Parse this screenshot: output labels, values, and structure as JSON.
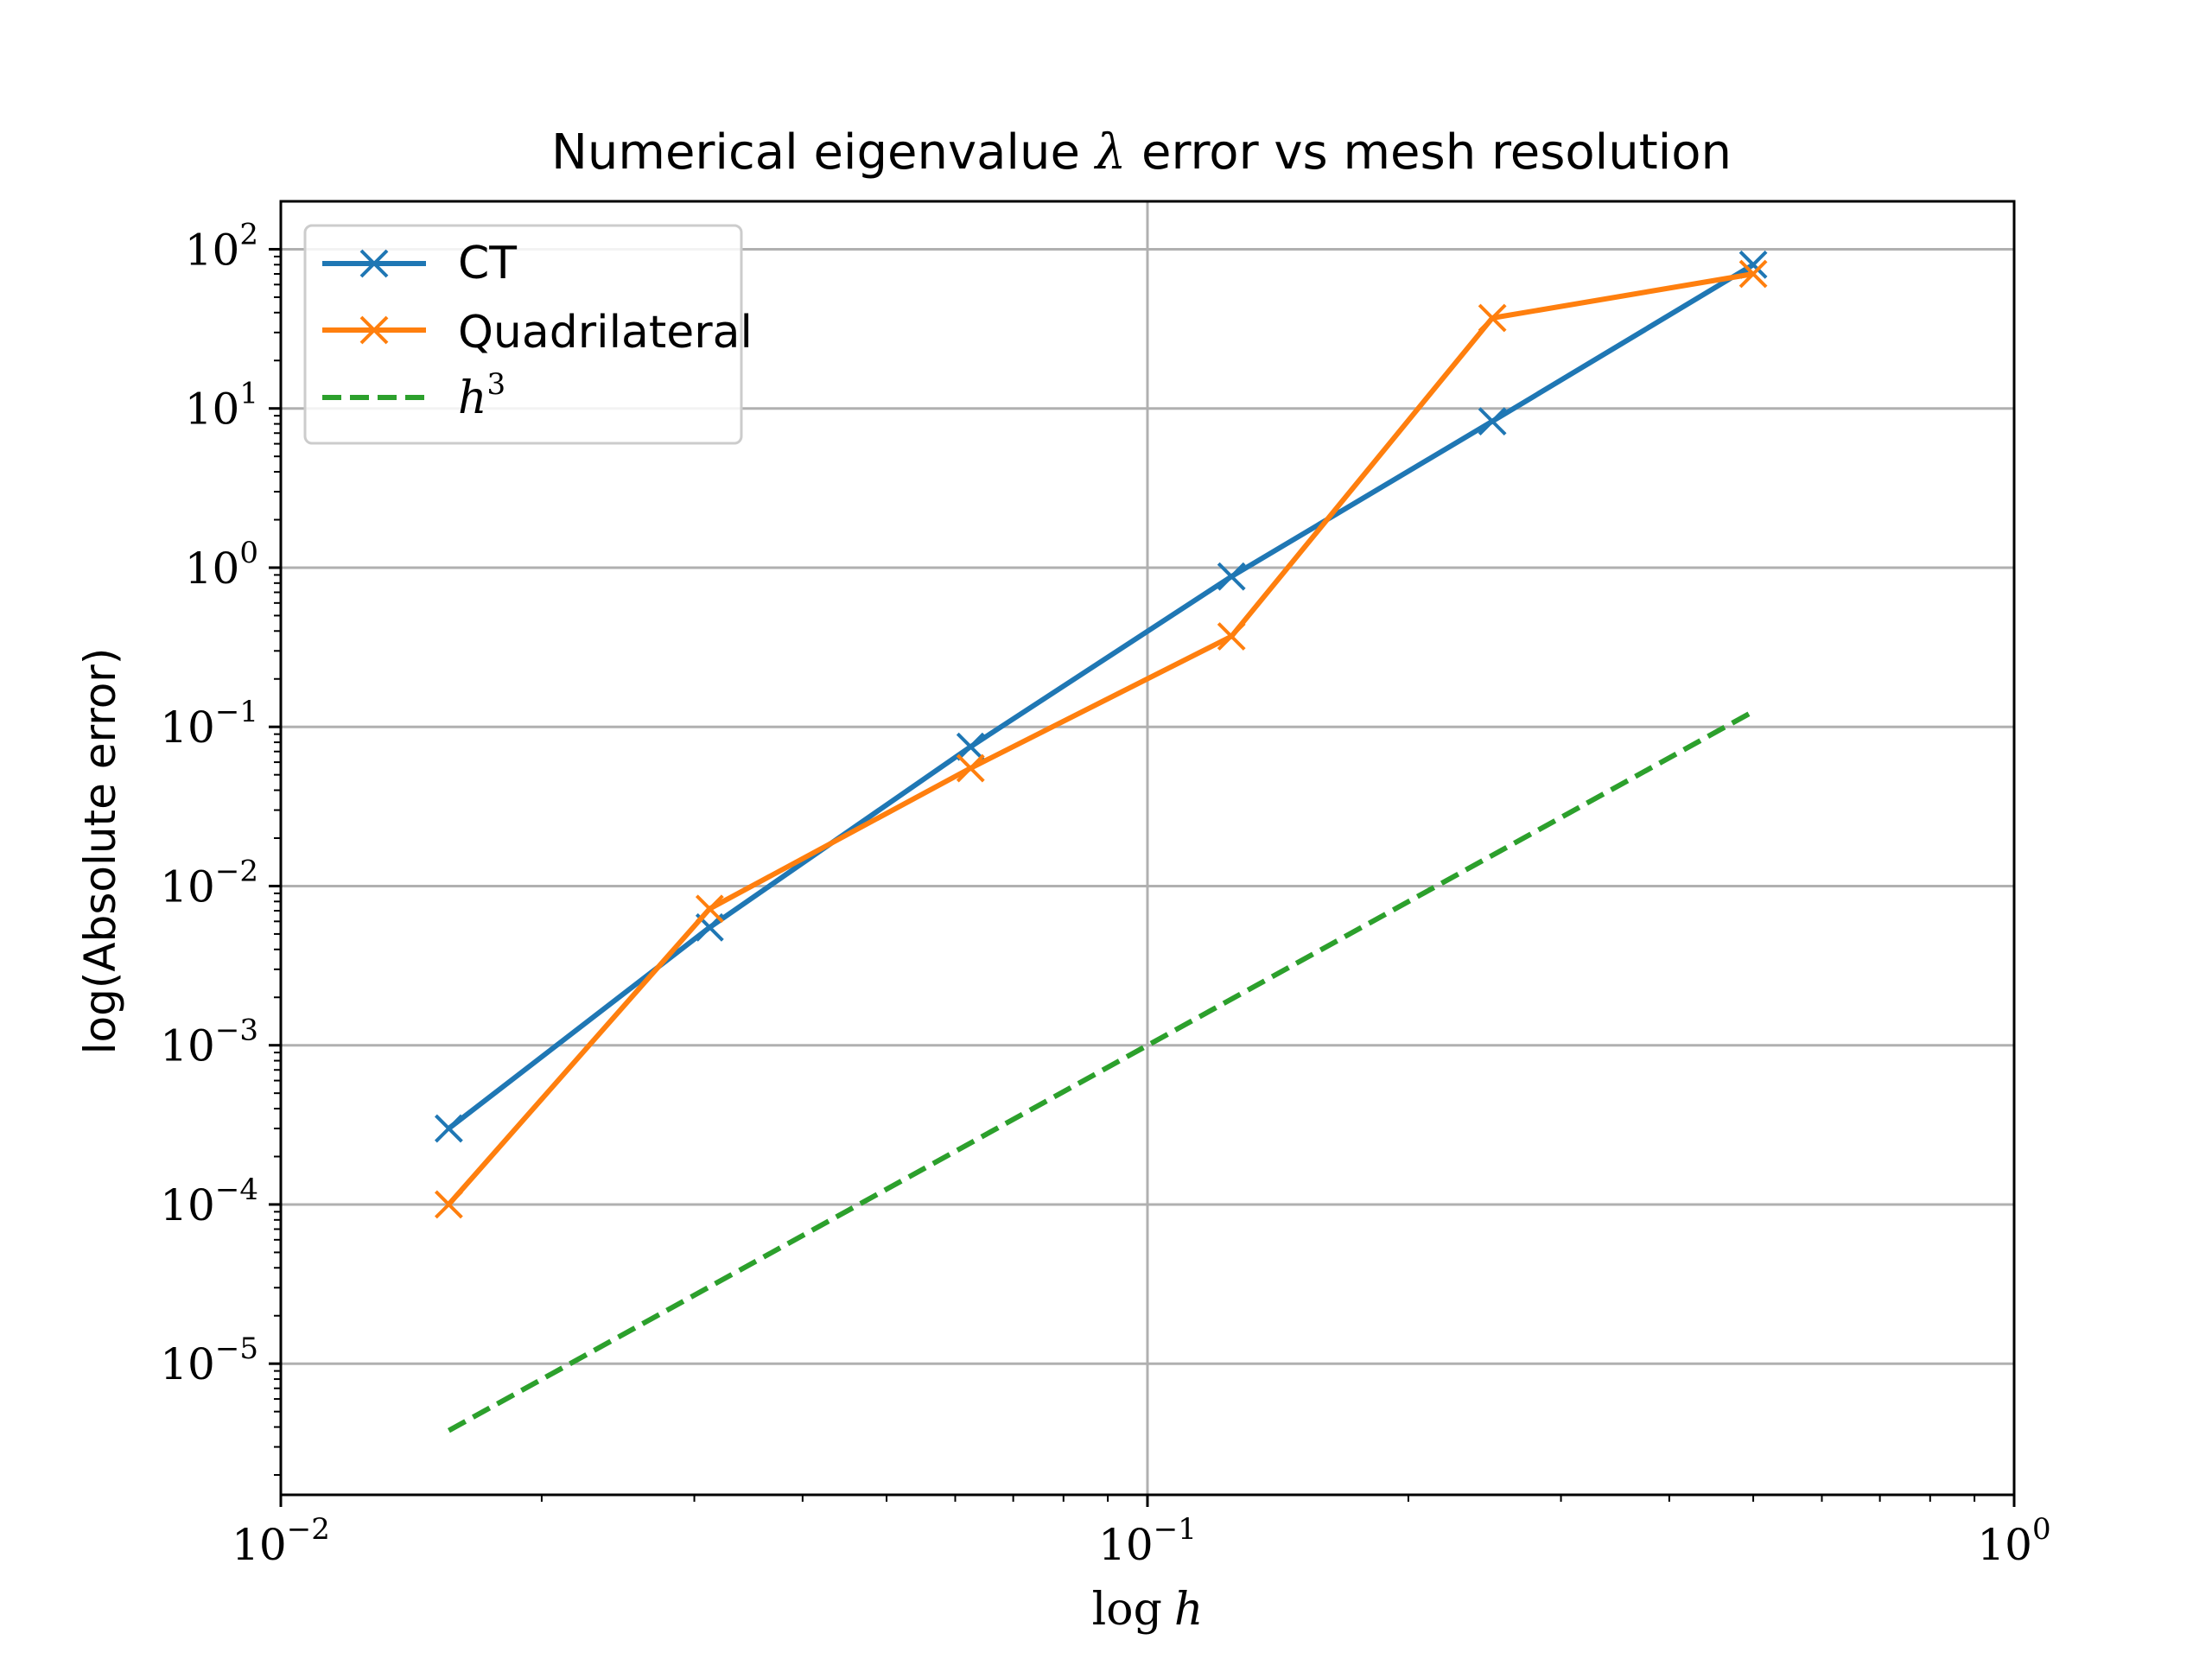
{
  "chart_data": {
    "type": "line",
    "title": "Numerical eigenvalue λ error vs mesh resolution",
    "title_parts": {
      "before": "Numerical eigenvalue ",
      "symbol": "λ",
      "after": " error vs mesh resolution"
    },
    "xlabel": "log h",
    "xlabel_parts": {
      "func": "log",
      "var": "h"
    },
    "ylabel": "log(Absolute error)",
    "xscale": "log",
    "yscale": "log",
    "xlim": [
      0.01,
      1
    ],
    "ylim": [
      1.5e-06,
      200
    ],
    "grid": true,
    "legend_position": "top-left",
    "x_ticks": [
      {
        "value": 0.01,
        "base": "10",
        "exp": "−2"
      },
      {
        "value": 0.1,
        "base": "10",
        "exp": "−1"
      },
      {
        "value": 1,
        "base": "10",
        "exp": "0"
      }
    ],
    "y_ticks": [
      {
        "value": 100,
        "base": "10",
        "exp": "2"
      },
      {
        "value": 10,
        "base": "10",
        "exp": "1"
      },
      {
        "value": 1,
        "base": "10",
        "exp": "0"
      },
      {
        "value": 0.1,
        "base": "10",
        "exp": "−1"
      },
      {
        "value": 0.01,
        "base": "10",
        "exp": "−2"
      },
      {
        "value": 0.001,
        "base": "10",
        "exp": "−3"
      },
      {
        "value": 0.0001,
        "base": "10",
        "exp": "−4"
      },
      {
        "value": 1e-05,
        "base": "10",
        "exp": "−5"
      }
    ],
    "series": [
      {
        "name": "CT",
        "color": "#1f77b4",
        "style": "solid",
        "marker": "x",
        "x": [
          0.015625,
          0.03125,
          0.0625,
          0.125,
          0.25,
          0.5
        ],
        "y": [
          0.0003,
          0.0055,
          0.075,
          0.88,
          8.3,
          80
        ]
      },
      {
        "name": "Quadrilateral",
        "color": "#ff7f0e",
        "style": "solid",
        "marker": "x",
        "x": [
          0.015625,
          0.03125,
          0.0625,
          0.125,
          0.25,
          0.5
        ],
        "y": [
          0.0001,
          0.0072,
          0.055,
          0.37,
          37,
          70
        ]
      },
      {
        "name": "h³",
        "legend_parts": {
          "base": "h",
          "exp": "3"
        },
        "color": "#2ca02c",
        "style": "dashed",
        "marker": "none",
        "x": [
          0.015625,
          0.5
        ],
        "y": [
          3.8e-06,
          0.125
        ]
      }
    ]
  }
}
